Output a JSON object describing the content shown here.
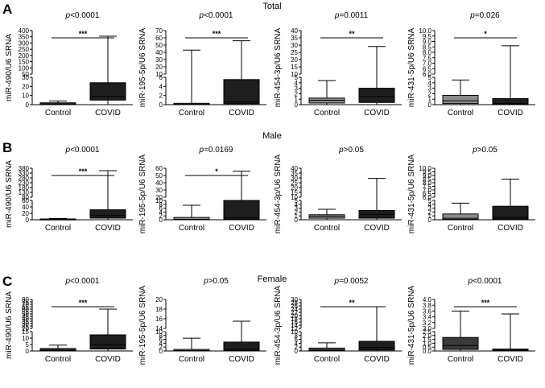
{
  "sections": [
    {
      "letter": "A",
      "title": "Total"
    },
    {
      "letter": "B",
      "title": "Male"
    },
    {
      "letter": "C",
      "title": "Female"
    }
  ],
  "colors": {
    "control": "#8c8c8c",
    "covid": "#1e1e1e",
    "female_control_light": "#3a3a3a",
    "stroke": "#000000"
  },
  "chart_data": [
    {
      "type": "box",
      "panel": "A1",
      "title": "p<0.0001",
      "ylabel": "miR-490/U6 SRNA",
      "categories": [
        "Control",
        "COVID"
      ],
      "seg_low": {
        "ticks": [
          "0",
          "10",
          "20",
          "30"
        ],
        "range": [
          0,
          30
        ]
      },
      "seg_high": {
        "ticks": [
          "50",
          "100",
          "150",
          "200",
          "250",
          "300",
          "350",
          "400"
        ],
        "range": [
          50,
          400
        ]
      },
      "boxes": [
        {
          "min": 0,
          "q1": 0.5,
          "median": 1,
          "q3": 2,
          "max": 4,
          "color": "#8c8c8c"
        },
        {
          "min": 0,
          "q1": 5,
          "median": 9,
          "q3": 24,
          "max": 355,
          "color": "#1e1e1e"
        }
      ],
      "sig": "***"
    },
    {
      "type": "box",
      "panel": "A2",
      "title": "p<0.0001",
      "ylabel": "miR-195-5p/U6 SRNA",
      "categories": [
        "Control",
        "COVID"
      ],
      "seg_low": {
        "ticks": [
          "0",
          "2",
          "4",
          "6"
        ],
        "range": [
          0,
          6
        ]
      },
      "seg_high": {
        "ticks": [
          "10",
          "20",
          "30",
          "40",
          "50",
          "60",
          "70"
        ],
        "range": [
          10,
          70
        ]
      },
      "boxes": [
        {
          "min": 0,
          "q1": 0,
          "median": 0.1,
          "q3": 0.3,
          "max": 43,
          "color": "#8c8c8c"
        },
        {
          "min": 0,
          "q1": 0.2,
          "median": 0.6,
          "q3": 5.5,
          "max": 56,
          "color": "#1e1e1e"
        }
      ],
      "sig": "***"
    },
    {
      "type": "box",
      "panel": "A3",
      "title": "p=0.0011",
      "ylabel": "miR-454-3p/U6 SRNA",
      "categories": [
        "Control",
        "COVID"
      ],
      "seg_low": {
        "ticks": [
          "0",
          "1",
          "2",
          "3",
          "4",
          "5"
        ],
        "range": [
          0,
          5
        ]
      },
      "seg_high": {
        "ticks": [
          "10",
          "15",
          "20",
          "25",
          "30",
          "35",
          "40"
        ],
        "range": [
          10,
          40
        ]
      },
      "boxes": [
        {
          "min": 0,
          "q1": 0.3,
          "median": 0.8,
          "q3": 1.2,
          "max": 4.4,
          "color": "#8c8c8c"
        },
        {
          "min": 0,
          "q1": 0.4,
          "median": 1.5,
          "q3": 3,
          "max": 29,
          "color": "#1e1e1e"
        }
      ],
      "sig": "**"
    },
    {
      "type": "box",
      "panel": "A4",
      "title": "p=0.026",
      "ylabel": "miR-431-5p/U6 SRNA",
      "categories": [
        "Control",
        "COVID"
      ],
      "seg_low": {
        "ticks": [
          "0",
          "1",
          "2",
          "3",
          "4",
          "5"
        ],
        "range": [
          0,
          5
        ]
      },
      "seg_high": {
        "ticks": [
          "6.0",
          "6.5",
          "7.0",
          "7.5",
          "8.0",
          "8.5",
          "9.0",
          "9.5",
          "10.0"
        ],
        "range": [
          6,
          10
        ]
      },
      "boxes": [
        {
          "min": 0,
          "q1": 0.2,
          "median": 0.7,
          "q3": 1.7,
          "max": 4.5,
          "color": "#8c8c8c"
        },
        {
          "min": 0,
          "q1": 0.1,
          "median": 0.2,
          "q3": 1.1,
          "max": 8.6,
          "color": "#1e1e1e"
        }
      ],
      "sig": "*"
    },
    {
      "type": "box",
      "panel": "B1",
      "title": "p<0.0001",
      "ylabel": "miR-490/U6 SRNA",
      "categories": [
        "Control",
        "COVID"
      ],
      "seg_low": {
        "ticks": [
          "0",
          "20",
          "40",
          "60"
        ],
        "range": [
          0,
          60
        ]
      },
      "seg_high": {
        "ticks": [
          "80",
          "130",
          "180",
          "230",
          "280",
          "330",
          "380"
        ],
        "range": [
          80,
          380
        ]
      },
      "boxes": [
        {
          "min": 0,
          "q1": 0.5,
          "median": 1.5,
          "q3": 2.5,
          "max": 4,
          "color": "#8c8c8c"
        },
        {
          "min": 0,
          "q1": 5,
          "median": 13,
          "q3": 31,
          "max": 355,
          "color": "#1e1e1e"
        }
      ],
      "sig": "***"
    },
    {
      "type": "box",
      "panel": "B2",
      "title": "p=0.0169",
      "ylabel": "miR-195-5p/U6 SRNA",
      "categories": [
        "Control",
        "COVID"
      ],
      "seg_low": {
        "ticks": [
          "0",
          "2",
          "4",
          "6",
          "8",
          "10"
        ],
        "range": [
          0,
          10
        ]
      },
      "seg_high": {
        "ticks": [
          "20",
          "30",
          "40",
          "50",
          "60"
        ],
        "range": [
          20,
          60
        ]
      },
      "boxes": [
        {
          "min": 0,
          "q1": 0,
          "median": 0.2,
          "q3": 1.2,
          "max": 7.5,
          "color": "#8c8c8c"
        },
        {
          "min": 0,
          "q1": 0.3,
          "median": 1,
          "q3": 10,
          "max": 56,
          "color": "#1e1e1e"
        }
      ],
      "sig": "*"
    },
    {
      "type": "box",
      "panel": "B3",
      "title": "p>0.05",
      "ylabel": "miR-454-3p/U6 SRNA",
      "categories": [
        "Control",
        "COVID"
      ],
      "seg_low": {
        "ticks": [
          "0",
          "1",
          "2",
          "3",
          "4",
          "5"
        ],
        "range": [
          0,
          5
        ]
      },
      "seg_high": {
        "ticks": [
          "10",
          "15",
          "20",
          "25",
          "30",
          "35",
          "40"
        ],
        "range": [
          10,
          40
        ]
      },
      "boxes": [
        {
          "min": 0,
          "q1": 0.4,
          "median": 0.9,
          "q3": 1.3,
          "max": 2.7,
          "color": "#8c8c8c"
        },
        {
          "min": 0,
          "q1": 0.4,
          "median": 1.4,
          "q3": 2.4,
          "max": 29.5,
          "color": "#1e1e1e"
        }
      ],
      "sig": ""
    },
    {
      "type": "box",
      "panel": "B4",
      "title": "p>0.05",
      "ylabel": "miR-431-5p/U6 SRNA",
      "categories": [
        "Control",
        "COVID"
      ],
      "seg_low": {
        "ticks": [
          "0",
          "1",
          "2",
          "3",
          "4",
          "5"
        ],
        "range": [
          0,
          5
        ]
      },
      "seg_high": {
        "ticks": [
          "6.0",
          "6.5",
          "7.0",
          "7.5",
          "8.0",
          "8.5",
          "9.0",
          "9.5",
          "10.0"
        ],
        "range": [
          6,
          10
        ]
      },
      "boxes": [
        {
          "min": 0,
          "q1": 0.1,
          "median": 0.4,
          "q3": 1.5,
          "max": 4.3,
          "color": "#8c8c8c"
        },
        {
          "min": 0,
          "q1": 0.2,
          "median": 0.6,
          "q3": 3.5,
          "max": 8.5,
          "color": "#1e1e1e"
        }
      ],
      "sig": ""
    },
    {
      "type": "box",
      "panel": "C1",
      "title": "p<0.0001",
      "ylabel": "miR-490/U6 SRNA",
      "categories": [
        "Control",
        "COVID"
      ],
      "seg_low": {
        "ticks": [
          "0",
          "5",
          "10",
          "15"
        ],
        "range": [
          0,
          15
        ]
      },
      "seg_high": {
        "ticks": [
          "20",
          "25",
          "30",
          "35",
          "40",
          "45",
          "50",
          "55",
          "60",
          "65",
          "70",
          "75",
          "80"
        ],
        "range": [
          20,
          80
        ]
      },
      "boxes": [
        {
          "min": 0,
          "q1": 0.4,
          "median": 1,
          "q3": 2,
          "max": 4.5,
          "color": "#8c8c8c"
        },
        {
          "min": 0,
          "q1": 1.5,
          "median": 5,
          "q3": 12.5,
          "max": 60,
          "color": "#1e1e1e"
        }
      ],
      "sig": "***"
    },
    {
      "type": "box",
      "panel": "C2",
      "title": "p>0.05",
      "ylabel": "miR-195-5p/U6 SRNA",
      "categories": [
        "Control",
        "COVID"
      ],
      "seg_low": {
        "ticks": [
          "0",
          "2",
          "4",
          "6",
          "8",
          "10"
        ],
        "range": [
          0,
          10
        ]
      },
      "seg_high": {
        "ticks": [
          "14",
          "16",
          "18",
          "20"
        ],
        "range": [
          14,
          20
        ]
      },
      "boxes": [
        {
          "min": 0,
          "q1": 0,
          "median": 0.2,
          "q3": 0.8,
          "max": 6.6,
          "color": "#8c8c8c"
        },
        {
          "min": 0,
          "q1": 0.3,
          "median": 0.8,
          "q3": 4.6,
          "max": 15.5,
          "color": "#1e1e1e"
        }
      ],
      "sig": ""
    },
    {
      "type": "box",
      "panel": "C3",
      "title": "p=0.0052",
      "ylabel": "miR-454-3p/U6 SRNA",
      "categories": [
        "Control",
        "COVID"
      ],
      "seg_low": {
        "ticks": [
          "0",
          "2",
          "4",
          "6",
          "8",
          "10"
        ],
        "range": [
          0,
          10
        ]
      },
      "seg_high": {
        "ticks": [
          "12",
          "14",
          "16",
          "18",
          "20",
          "22",
          "24",
          "26",
          "28",
          "30"
        ],
        "range": [
          12,
          30
        ]
      },
      "boxes": [
        {
          "min": 0,
          "q1": 0.3,
          "median": 0.8,
          "q3": 1.5,
          "max": 4.2,
          "color": "#8c8c8c"
        },
        {
          "min": 0,
          "q1": 0.5,
          "median": 1.8,
          "q3": 5,
          "max": 25.5,
          "color": "#1e1e1e"
        }
      ],
      "sig": "**"
    },
    {
      "type": "box",
      "panel": "C4",
      "title": "p<0.0001",
      "ylabel": "miR-431-5p/U6 SRNA",
      "categories": [
        "Control",
        "COVID"
      ],
      "seg_low": {
        "ticks": [
          "0.0",
          "0.5",
          "1.0",
          "1.5",
          "2.0",
          "2.5"
        ],
        "range": [
          0,
          2.5
        ]
      },
      "seg_high": {
        "ticks": [
          "3.0",
          "3.2",
          "3.4",
          "3.6",
          "3.8",
          "4.0"
        ],
        "range": [
          3,
          4
        ]
      },
      "boxes": [
        {
          "min": 0,
          "q1": 0.2,
          "median": 0.7,
          "q3": 1.75,
          "max": 3.6,
          "color": "#3a3a3a"
        },
        {
          "min": 0,
          "q1": 0.02,
          "median": 0.08,
          "q3": 0.25,
          "max": 3.5,
          "color": "#1e1e1e"
        }
      ],
      "sig": "***"
    }
  ]
}
